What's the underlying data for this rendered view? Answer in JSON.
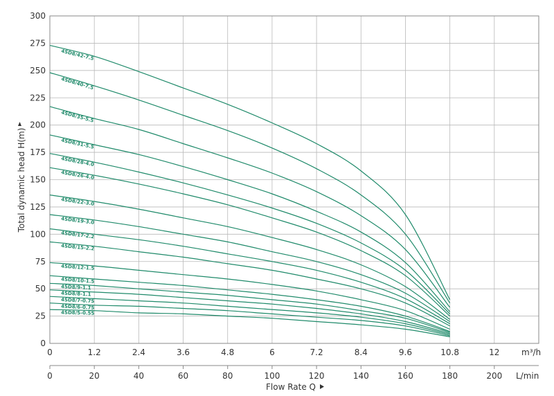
{
  "chart_data": {
    "type": "line",
    "ylabel": "Total dynamic head H(m)",
    "xlabel": "Flow Rate Q",
    "unit_m3h": "m³/h",
    "unit_lmin": "L/min",
    "ylim": [
      0,
      300
    ],
    "xlim_m3h": [
      0,
      13.2
    ],
    "xlim_lmin": [
      0,
      220
    ],
    "y_ticks": [
      "0",
      "25",
      "50",
      "75",
      "100",
      "125",
      "150",
      "175",
      "200",
      "225",
      "250",
      "275",
      "300"
    ],
    "x_ticks_m3h": [
      "0",
      "1.2",
      "2.4",
      "3.6",
      "4.8",
      "6",
      "7.2",
      "8.4",
      "9.6",
      "10.8",
      "12"
    ],
    "x_ticks_lmin": [
      "0",
      "20",
      "40",
      "60",
      "80",
      "100",
      "120",
      "140",
      "160",
      "180",
      "200"
    ],
    "grid": true,
    "line_color": "#1f8a6a",
    "series": [
      {
        "name": "4SD8/42-7.5",
        "x": [
          0,
          1.2,
          2.4,
          3.6,
          4.8,
          6,
          7.2,
          8.4,
          9.6,
          10.8
        ],
        "values": [
          273,
          263,
          249,
          234,
          219,
          202,
          183,
          158,
          118,
          40
        ]
      },
      {
        "name": "4SD8/40-7.5",
        "x": [
          0,
          1.2,
          2.4,
          3.6,
          4.8,
          6,
          7.2,
          8.4,
          9.6,
          10.8
        ],
        "values": [
          248,
          236,
          223,
          209,
          195,
          179,
          160,
          136,
          100,
          37
        ]
      },
      {
        "name": "4SD8/35-5.5",
        "x": [
          0,
          1.2,
          2.4,
          3.6,
          4.8,
          6,
          7.2,
          8.4,
          9.6,
          10.8
        ],
        "values": [
          217,
          206,
          196,
          183,
          170,
          156,
          139,
          117,
          86,
          33
        ]
      },
      {
        "name": "4SD8/31-5.5",
        "x": [
          0,
          1.2,
          2.4,
          3.6,
          4.8,
          6,
          7.2,
          8.4,
          9.6,
          10.8
        ],
        "values": [
          191,
          182,
          173,
          162,
          150,
          137,
          121,
          102,
          74,
          29
        ]
      },
      {
        "name": "4SD8/28-4.0",
        "x": [
          0,
          1.2,
          2.4,
          3.6,
          4.8,
          6,
          7.2,
          8.4,
          9.6,
          10.8
        ],
        "values": [
          174,
          166,
          157,
          147,
          136,
          124,
          110,
          92,
          67,
          27
        ]
      },
      {
        "name": "4SD8/26-4.0",
        "x": [
          0,
          1.2,
          2.4,
          3.6,
          4.8,
          6,
          7.2,
          8.4,
          9.6,
          10.8
        ],
        "values": [
          161,
          154,
          146,
          137,
          127,
          115,
          102,
          85,
          62,
          25
        ]
      },
      {
        "name": "4SD8/22-3.0",
        "x": [
          0,
          1.2,
          2.4,
          3.6,
          4.8,
          6,
          7.2,
          8.4,
          9.6,
          10.8
        ],
        "values": [
          136,
          130,
          123,
          115,
          107,
          97,
          86,
          72,
          52,
          22
        ]
      },
      {
        "name": "4SD8/19-3.0",
        "x": [
          0,
          1.2,
          2.4,
          3.6,
          4.8,
          6,
          7.2,
          8.4,
          9.6,
          10.8
        ],
        "values": [
          118,
          113,
          107,
          100,
          93,
          84,
          75,
          63,
          46,
          20
        ]
      },
      {
        "name": "4SD8/17-2.2",
        "x": [
          0,
          1.2,
          2.4,
          3.6,
          4.8,
          6,
          7.2,
          8.4,
          9.6,
          10.8
        ],
        "values": [
          105,
          100,
          95,
          89,
          82,
          75,
          67,
          56,
          41,
          18
        ]
      },
      {
        "name": "4SD8/15-2.2",
        "x": [
          0,
          1.2,
          2.4,
          3.6,
          4.8,
          6,
          7.2,
          8.4,
          9.6,
          10.8
        ],
        "values": [
          93,
          89,
          84,
          79,
          73,
          67,
          59,
          50,
          37,
          16
        ]
      },
      {
        "name": "4SD8/12-1.5",
        "x": [
          0,
          1.2,
          2.4,
          3.6,
          4.8,
          6,
          7.2,
          8.4,
          9.6,
          10.8
        ],
        "values": [
          74,
          71,
          67,
          63,
          59,
          54,
          48,
          40,
          30,
          13
        ]
      },
      {
        "name": "4SD8/10-1.5",
        "x": [
          0,
          1.2,
          2.4,
          3.6,
          4.8,
          6,
          7.2,
          8.4,
          9.6,
          10.8
        ],
        "values": [
          62,
          59,
          56,
          53,
          49,
          45,
          40,
          34,
          25,
          11
        ]
      },
      {
        "name": "4SD8/9-1.1",
        "x": [
          0,
          1.2,
          2.4,
          3.6,
          4.8,
          6,
          7.2,
          8.4,
          9.6,
          10.8
        ],
        "values": [
          55,
          53,
          50,
          47,
          44,
          40,
          36,
          30,
          23,
          10
        ]
      },
      {
        "name": "4SD8/8-1.1",
        "x": [
          0,
          1.2,
          2.4,
          3.6,
          4.8,
          6,
          7.2,
          8.4,
          9.6,
          10.8
        ],
        "values": [
          49,
          47,
          45,
          42,
          39,
          36,
          32,
          27,
          20,
          9
        ]
      },
      {
        "name": "4SD8/7-0.75",
        "x": [
          0,
          1.2,
          2.4,
          3.6,
          4.8,
          6,
          7.2,
          8.4,
          9.6,
          10.8
        ],
        "values": [
          43,
          41,
          39,
          37,
          34,
          31,
          28,
          24,
          18,
          8
        ]
      },
      {
        "name": "4SD8/6-0.75",
        "x": [
          0,
          1.2,
          2.4,
          3.6,
          4.8,
          6,
          7.2,
          8.4,
          9.6,
          10.8
        ],
        "values": [
          37,
          35,
          34,
          32,
          30,
          27,
          24,
          21,
          16,
          7
        ]
      },
      {
        "name": "4SD8/5-0.55",
        "x": [
          0,
          1.2,
          2.4,
          3.6,
          4.8,
          6,
          7.2,
          8.4,
          9.6,
          10.8
        ],
        "values": [
          31,
          30,
          28,
          27,
          25,
          23,
          20,
          17,
          13,
          6
        ]
      }
    ]
  }
}
